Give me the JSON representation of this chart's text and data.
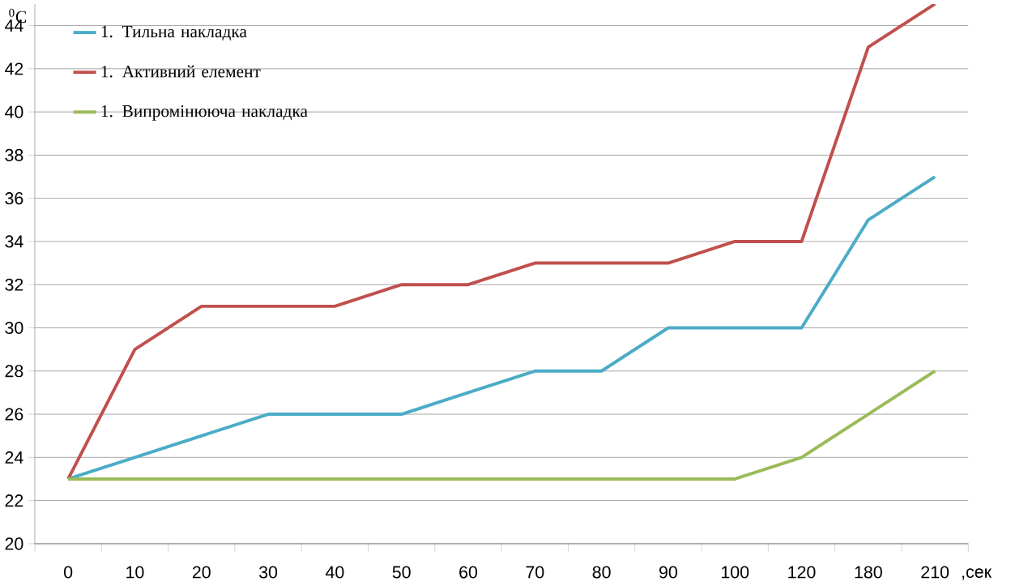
{
  "chart_data": {
    "type": "line",
    "xlabel": ",сек",
    "ylabel": "$^{0}$C",
    "categories": [
      "0",
      "10",
      "20",
      "30",
      "40",
      "50",
      "60",
      "70",
      "80",
      "90",
      "100",
      "120",
      "180",
      "210"
    ],
    "series": [
      {
        "name": "1. Тильна накладка",
        "color": "#4bacc6",
        "values": [
          23,
          24,
          25,
          26,
          26,
          26,
          27,
          28,
          28,
          30,
          30,
          30,
          35,
          37
        ]
      },
      {
        "name": "1. Активний елемент",
        "color": "#c0504d",
        "values": [
          23,
          29,
          31,
          31,
          31,
          32,
          32,
          33,
          33,
          33,
          34,
          34,
          43,
          45
        ]
      },
      {
        "name": "1. Випромінююча накладка",
        "color": "#9bbb59",
        "values": [
          23,
          23,
          23,
          23,
          23,
          23,
          23,
          23,
          23,
          23,
          23,
          24,
          26,
          28
        ]
      }
    ],
    "ylim": [
      20,
      45
    ],
    "yticks": [
      20,
      22,
      24,
      26,
      28,
      30,
      32,
      34,
      36,
      38,
      40,
      42,
      44
    ],
    "grid": "y",
    "legend": "top left",
    "marker": "none",
    "line_style": "solid"
  }
}
